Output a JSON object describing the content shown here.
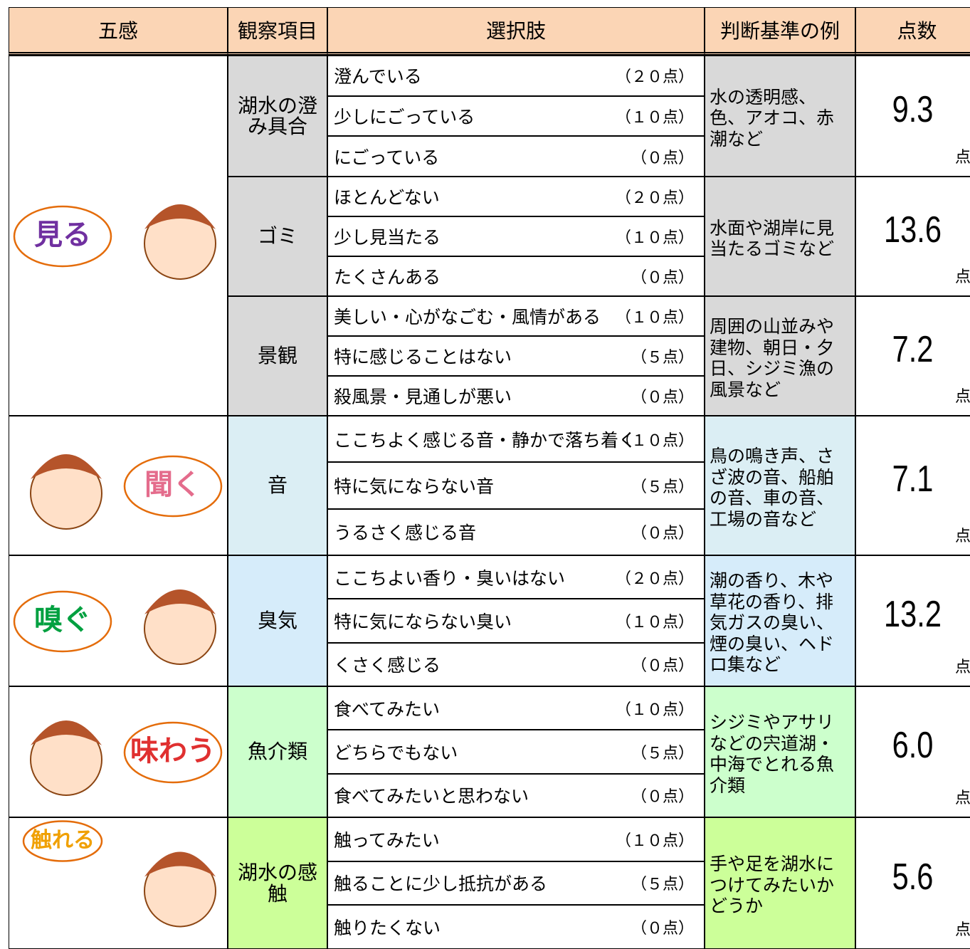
{
  "header": [
    "五感",
    "観察項目",
    "選択肢",
    "判断基準の例",
    "点数"
  ],
  "senses": [
    {
      "label": "見る",
      "items": [
        {
          "name": "湖水の澄み具合",
          "choices": [
            {
              "text": "澄んでいる",
              "points": "（２０点）"
            },
            {
              "text": "少しにごっている",
              "points": "（１０点）"
            },
            {
              "text": "にごっている",
              "points": "（０点）"
            }
          ],
          "criteria": "水の透明感、色、アオコ、赤潮など",
          "score": "9.3",
          "unit": "点"
        },
        {
          "name": "ゴミ",
          "choices": [
            {
              "text": "ほとんどない",
              "points": "（２０点）"
            },
            {
              "text": "少し見当たる",
              "points": "（１０点）"
            },
            {
              "text": "たくさんある",
              "points": "（０点）"
            }
          ],
          "criteria": "水面や湖岸に見当たるゴミなど",
          "score": "13.6",
          "unit": "点"
        },
        {
          "name": "景観",
          "choices": [
            {
              "text": "美しい・心がなごむ・風情がある",
              "points": "（１０点）"
            },
            {
              "text": "特に感じることはない",
              "points": "（５点）"
            },
            {
              "text": "殺風景・見通しが悪い",
              "points": "（０点）"
            }
          ],
          "criteria": "周囲の山並みや建物、朝日・夕日、シジミ漁の風景など",
          "score": "7.2",
          "unit": "点"
        }
      ]
    },
    {
      "label": "聞く",
      "items": [
        {
          "name": "音",
          "choices": [
            {
              "text": "ここちよく感じる音・静かで落ち着く",
              "points": "（１０点）"
            },
            {
              "text": "特に気にならない音",
              "points": "（５点）"
            },
            {
              "text": "うるさく感じる音",
              "points": "（０点）"
            }
          ],
          "criteria": "鳥の鳴き声、さざ波の音、船舶の音、車の音、工場の音など",
          "score": "7.1",
          "unit": "点"
        }
      ]
    },
    {
      "label": "嗅ぐ",
      "items": [
        {
          "name": "臭気",
          "choices": [
            {
              "text": "ここちよい香り・臭いはない",
              "points": "（２０点）"
            },
            {
              "text": "特に気にならない臭い",
              "points": "（１０点）"
            },
            {
              "text": "くさく感じる",
              "points": "（０点）"
            }
          ],
          "criteria": "潮の香り、木や草花の香り、排気ガスの臭い、煙の臭い、ヘドロ集など",
          "score": "13.2",
          "unit": "点"
        }
      ]
    },
    {
      "label": "味わう",
      "items": [
        {
          "name": "魚介類",
          "choices": [
            {
              "text": "食べてみたい",
              "points": "（１０点）"
            },
            {
              "text": "どちらでもない",
              "points": "（５点）"
            },
            {
              "text": "食べてみたいと思わない",
              "points": "（０点）"
            }
          ],
          "criteria": "シジミやアサリなどの宍道湖・中海でとれる魚介類",
          "score": "6.0",
          "unit": "点"
        }
      ]
    },
    {
      "label": "触れる",
      "items": [
        {
          "name": "湖水の感触",
          "choices": [
            {
              "text": "触ってみたい",
              "points": "（１０点）"
            },
            {
              "text": "触ることに少し抵抗がある",
              "points": "（５点）"
            },
            {
              "text": "触りたくない",
              "points": "（０点）"
            }
          ],
          "criteria": "手や足を湖水につけてみたいかどうか",
          "score": "5.6",
          "unit": "点"
        }
      ]
    }
  ]
}
